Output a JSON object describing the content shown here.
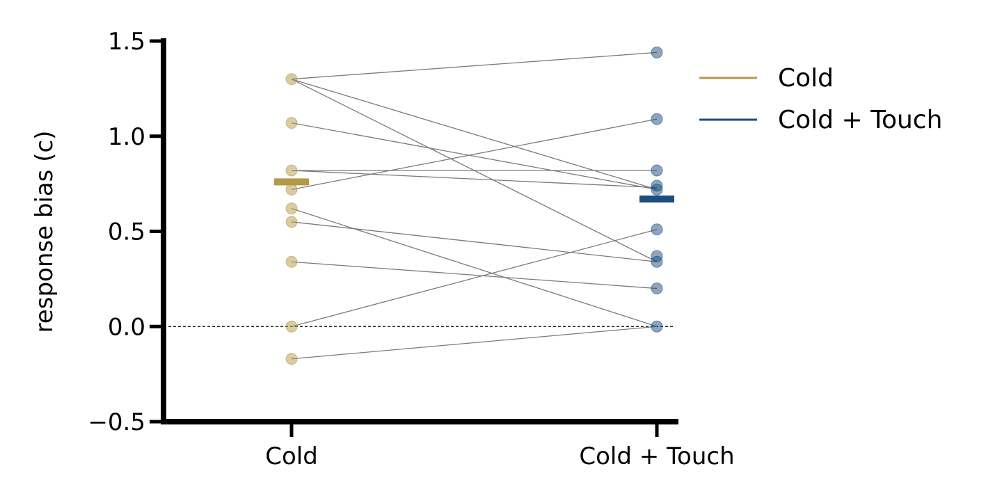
{
  "chart_data": {
    "type": "scatter",
    "ylabel": "response bias (c)",
    "xlabel": "",
    "title": "",
    "categories": [
      "Cold",
      "Cold + Touch"
    ],
    "ylim": [
      -0.5,
      1.5
    ],
    "yticks": [
      "1.5",
      "1.0",
      "0.5",
      "0.0",
      "−0.5"
    ],
    "yticks_values": [
      1.5,
      1.0,
      0.5,
      0.0,
      -0.5
    ],
    "reference_line": 0.0,
    "grid": false,
    "legend_position": "top-right",
    "series": [
      {
        "name": "Cold",
        "color": "#b39a48",
        "values": [
          1.3,
          1.07,
          0.82,
          0.72,
          0.62,
          0.55,
          0.34,
          0.0,
          -0.17
        ],
        "mean": 0.76
      },
      {
        "name": "Cold + Touch",
        "color": "#1b4e7e",
        "values": [
          1.44,
          1.09,
          0.82,
          0.74,
          0.72,
          0.51,
          0.37,
          0.34,
          0.2,
          0.0
        ],
        "mean": 0.67
      }
    ],
    "pairs": [
      [
        1.3,
        1.44
      ],
      [
        1.3,
        0.72
      ],
      [
        1.3,
        0.34
      ],
      [
        1.07,
        0.72
      ],
      [
        0.82,
        0.82
      ],
      [
        0.82,
        0.73
      ],
      [
        0.72,
        1.09
      ],
      [
        0.62,
        0.0
      ],
      [
        0.55,
        0.34
      ],
      [
        0.34,
        0.2
      ],
      [
        0.0,
        0.51
      ],
      [
        -0.17,
        0.0
      ]
    ]
  }
}
